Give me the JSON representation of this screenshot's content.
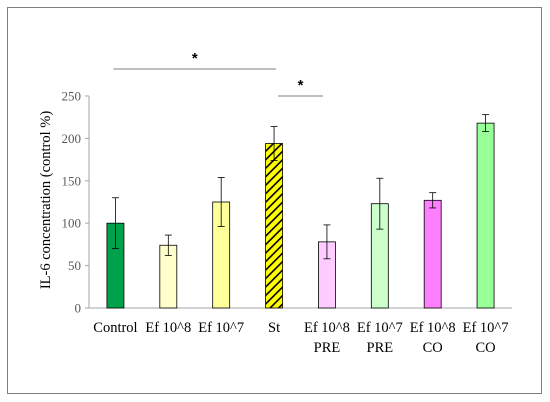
{
  "chart_data": {
    "type": "bar",
    "ylabel": "IL-6 concentration (control %)",
    "ylim": [
      0,
      250
    ],
    "yticks": [
      0,
      50,
      100,
      150,
      200,
      250
    ],
    "categories": [
      [
        "Control"
      ],
      [
        "Ef 10^8"
      ],
      [
        "Ef 10^7"
      ],
      [
        "St"
      ],
      [
        "Ef 10^8",
        "PRE"
      ],
      [
        "Ef 10^7",
        "PRE"
      ],
      [
        "Ef 10^8",
        "CO"
      ],
      [
        "Ef 10^7",
        "CO"
      ]
    ],
    "values": [
      100,
      74,
      125,
      194,
      78,
      123,
      127,
      218
    ],
    "errors": [
      30,
      12,
      29,
      20,
      20,
      30,
      9,
      10
    ],
    "colors": [
      "#00a14b",
      "#ffffcc",
      "#ffff99",
      "#ffff00",
      "#ffccff",
      "#ccffcc",
      "#ff80ff",
      "#99ff99"
    ],
    "hatched": [
      false,
      false,
      false,
      true,
      false,
      false,
      false,
      false
    ],
    "grid": false,
    "significance": [
      {
        "from": 0,
        "to": 3,
        "label": "*"
      },
      {
        "from": 3,
        "to": 4,
        "label": "*"
      }
    ]
  }
}
